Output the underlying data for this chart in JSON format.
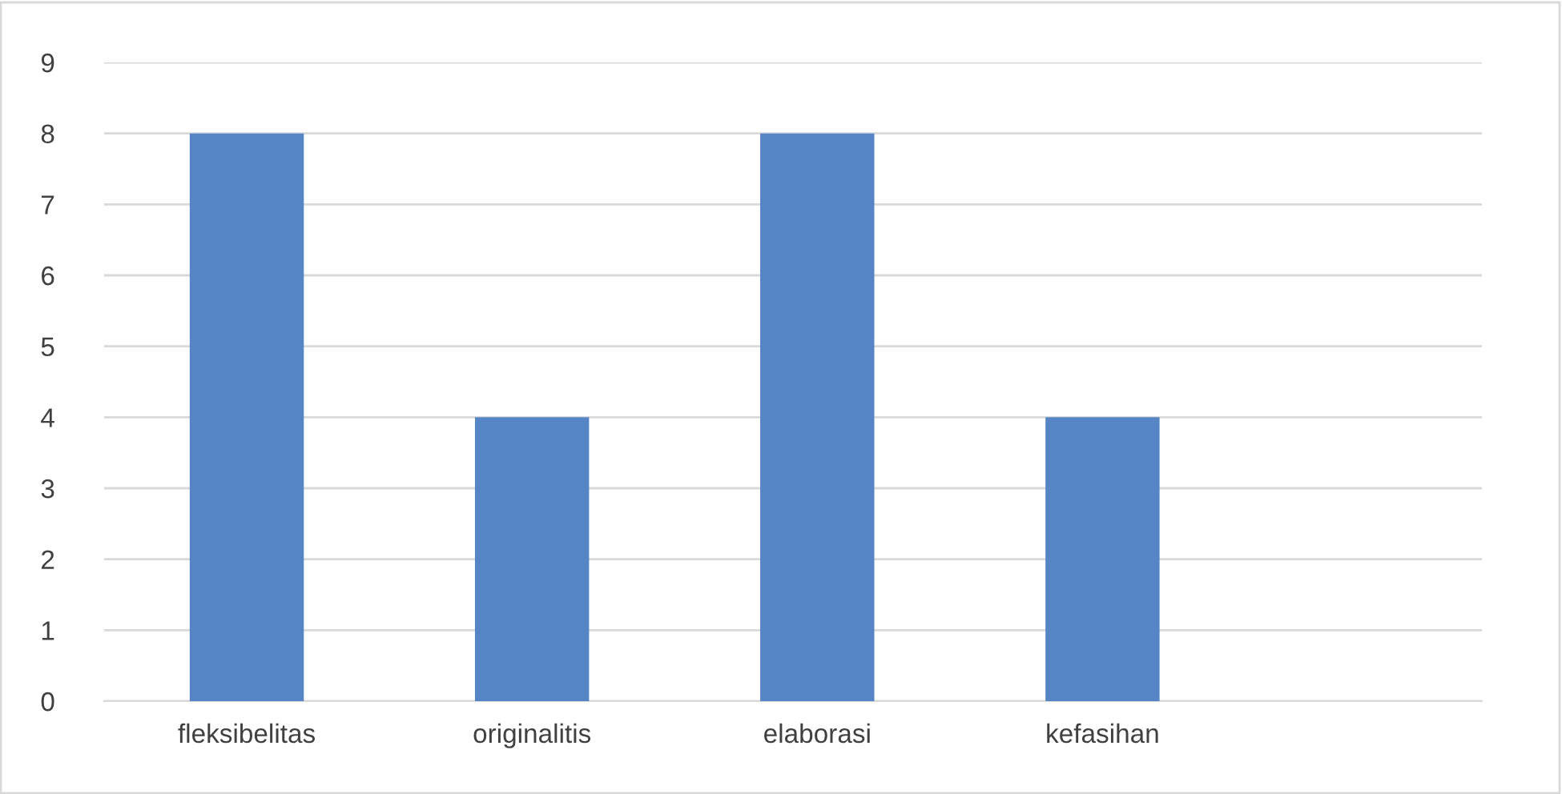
{
  "chart_data": {
    "type": "bar",
    "categories": [
      "fleksibelitas",
      "originalitis",
      "elaborasi",
      "kefasihan"
    ],
    "values": [
      8,
      4,
      8,
      4
    ],
    "color": "#5585c5",
    "ylim": [
      0,
      9
    ],
    "yticks": [
      0,
      1,
      2,
      3,
      4,
      5,
      6,
      7,
      8,
      9
    ],
    "grid": "y"
  }
}
